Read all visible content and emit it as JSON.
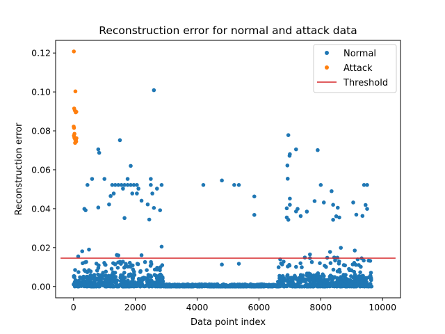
{
  "chart_data": {
    "type": "scatter",
    "title": "Reconstruction error for normal and attack data",
    "xlabel": "Data point index",
    "ylabel": "Reconstruction error",
    "xlim": [
      -580,
      10580
    ],
    "ylim": [
      -0.0058,
      0.1265
    ],
    "x_ticks": [
      0,
      2000,
      4000,
      6000,
      8000,
      10000
    ],
    "x_tick_labels": [
      "0",
      "2000",
      "4000",
      "6000",
      "8000",
      "10000"
    ],
    "y_ticks": [
      0.0,
      0.02,
      0.04,
      0.06,
      0.08,
      0.1,
      0.12
    ],
    "y_tick_labels": [
      "0.00",
      "0.02",
      "0.04",
      "0.06",
      "0.08",
      "0.10",
      "0.12"
    ],
    "grid": false,
    "legend_position": "top-right",
    "colors": {
      "normal": "#1f77b4",
      "attack": "#ff7f0e",
      "threshold": "#d62728"
    },
    "series": [
      {
        "name": "Normal",
        "kind": "scatter",
        "points": [
          [
            2600,
            0.1009
          ],
          [
            1500,
            0.0752
          ],
          [
            800,
            0.0705
          ],
          [
            830,
            0.0687
          ],
          [
            1850,
            0.062
          ],
          [
            6950,
            0.0778
          ],
          [
            7000,
            0.068
          ],
          [
            6990,
            0.0672
          ],
          [
            7200,
            0.0705
          ],
          [
            7900,
            0.0701
          ],
          [
            6920,
            0.0622
          ],
          [
            6930,
            0.0554
          ],
          [
            600,
            0.0553
          ],
          [
            1000,
            0.0553
          ],
          [
            1750,
            0.0553
          ],
          [
            2500,
            0.0553
          ],
          [
            4800,
            0.0545
          ],
          [
            450,
            0.0522
          ],
          [
            1250,
            0.0522
          ],
          [
            1350,
            0.0522
          ],
          [
            1450,
            0.0522
          ],
          [
            1550,
            0.0522
          ],
          [
            1650,
            0.0522
          ],
          [
            1750,
            0.0522
          ],
          [
            1850,
            0.0522
          ],
          [
            1950,
            0.0522
          ],
          [
            2050,
            0.0522
          ],
          [
            2500,
            0.0522
          ],
          [
            2850,
            0.0522
          ],
          [
            4200,
            0.0522
          ],
          [
            5200,
            0.0522
          ],
          [
            5350,
            0.0522
          ],
          [
            8000,
            0.0522
          ],
          [
            9400,
            0.0522
          ],
          [
            9500,
            0.0522
          ],
          [
            1600,
            0.0503
          ],
          [
            2100,
            0.0503
          ],
          [
            2700,
            0.0503
          ],
          [
            8350,
            0.049
          ],
          [
            1300,
            0.0478
          ],
          [
            1900,
            0.0478
          ],
          [
            2050,
            0.0478
          ],
          [
            2550,
            0.0478
          ],
          [
            1200,
            0.0465
          ],
          [
            5850,
            0.0463
          ],
          [
            7000,
            0.0452
          ],
          [
            2200,
            0.0441
          ],
          [
            7800,
            0.0439
          ],
          [
            8100,
            0.0432
          ],
          [
            9050,
            0.0432
          ],
          [
            1150,
            0.0422
          ],
          [
            2400,
            0.0422
          ],
          [
            7000,
            0.042
          ],
          [
            8400,
            0.042
          ],
          [
            9450,
            0.0419
          ],
          [
            800,
            0.0406
          ],
          [
            2600,
            0.0404
          ],
          [
            6900,
            0.0402
          ],
          [
            8550,
            0.0405
          ],
          [
            350,
            0.0399
          ],
          [
            7250,
            0.0399
          ],
          [
            9500,
            0.0399
          ],
          [
            390,
            0.0392
          ],
          [
            2800,
            0.0392
          ],
          [
            7200,
            0.0386
          ],
          [
            7550,
            0.0385
          ],
          [
            9150,
            0.0369
          ],
          [
            5850,
            0.0368
          ],
          [
            7350,
            0.0362
          ],
          [
            8500,
            0.0361
          ],
          [
            9350,
            0.0363
          ],
          [
            8600,
            0.0355
          ],
          [
            6900,
            0.0355
          ],
          [
            1650,
            0.0352
          ],
          [
            6950,
            0.0343
          ],
          [
            2450,
            0.0344
          ],
          [
            8400,
            0.0343
          ],
          [
            2850,
            0.0205
          ],
          [
            8650,
            0.0199
          ],
          [
            500,
            0.019
          ],
          [
            9100,
            0.0185
          ],
          [
            280,
            0.0181
          ],
          [
            8300,
            0.0178
          ],
          [
            7650,
            0.0165
          ],
          [
            1400,
            0.0162
          ],
          [
            1450,
            0.016
          ],
          [
            2200,
            0.0161
          ],
          [
            150,
            0.0155
          ],
          [
            9600,
            0.0132
          ],
          [
            4800,
            0.0113
          ],
          [
            5350,
            0.0117
          ]
        ]
      },
      {
        "name": "Attack",
        "kind": "scatter",
        "points": [
          [
            10,
            0.1208
          ],
          [
            60,
            0.1003
          ],
          [
            20,
            0.0915
          ],
          [
            40,
            0.0905
          ],
          [
            70,
            0.0895
          ],
          [
            90,
            0.0898
          ],
          [
            5,
            0.0822
          ],
          [
            15,
            0.0815
          ],
          [
            30,
            0.0785
          ],
          [
            10,
            0.0775
          ],
          [
            25,
            0.0765
          ],
          [
            45,
            0.076
          ],
          [
            55,
            0.0755
          ],
          [
            75,
            0.0752
          ],
          [
            85,
            0.0745
          ],
          [
            65,
            0.0742
          ],
          [
            95,
            0.0762
          ],
          [
            50,
            0.0738
          ]
        ]
      },
      {
        "name": "Threshold",
        "kind": "line",
        "points": [
          [
            -420,
            0.0146
          ],
          [
            10420,
            0.0146
          ]
        ]
      }
    ]
  }
}
